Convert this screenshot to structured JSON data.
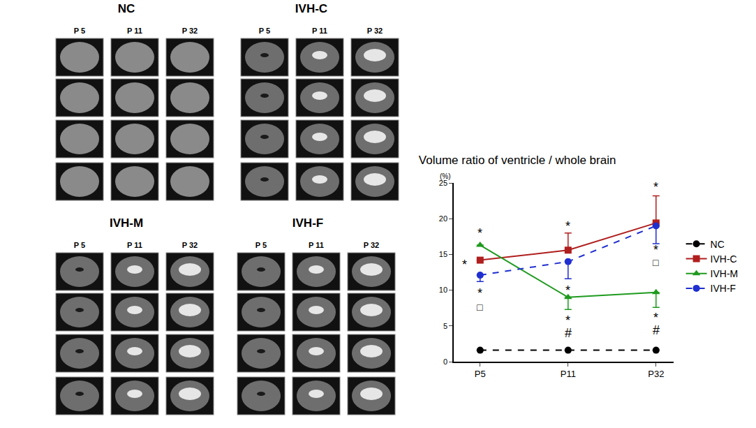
{
  "chart_data": {
    "type": "line",
    "title": "Volume ratio of ventricle / whole brain",
    "y_label": "(%)",
    "categories": [
      "P5",
      "P11",
      "P32"
    ],
    "ylim": [
      0,
      25
    ],
    "yticks": [
      0,
      5,
      10,
      15,
      20,
      25
    ],
    "grid": false,
    "legend": "right",
    "series": [
      {
        "name": "NC",
        "color": "#000000",
        "marker": "circle",
        "line_style": "dash",
        "values": [
          1.6,
          1.6,
          1.6
        ],
        "error_plus": [
          0,
          0,
          0
        ],
        "error_minus": [
          0,
          0,
          0
        ]
      },
      {
        "name": "IVH-C",
        "color": "#b01e1e",
        "marker": "square",
        "line_style": "solid",
        "values": [
          14.2,
          15.6,
          19.4
        ],
        "error_plus": [
          0,
          2.4,
          3.8
        ],
        "error_minus": [
          0,
          0,
          0
        ]
      },
      {
        "name": "IVH-M",
        "color": "#1e9a1e",
        "marker": "triangle-up",
        "line_style": "solid",
        "values": [
          16.3,
          9.0,
          9.7
        ],
        "error_plus": [
          0,
          0,
          0
        ],
        "error_minus": [
          0,
          1.7,
          2.1
        ]
      },
      {
        "name": "IVH-F",
        "color": "#1f2fd0",
        "marker": "circle",
        "line_style": "dash",
        "values": [
          12.1,
          14.0,
          19.0
        ],
        "error_plus": [
          0,
          0,
          0
        ],
        "error_minus": [
          0.9,
          2.4,
          2.5
        ]
      }
    ],
    "annotations": [
      {
        "x": "P5",
        "y": 18.0,
        "text": "*"
      },
      {
        "x": "P5",
        "y": 13.6,
        "text": "*",
        "side": "left"
      },
      {
        "x": "P5",
        "y": 9.6,
        "text": "*"
      },
      {
        "x": "P5",
        "y": 7.6,
        "text": "□"
      },
      {
        "x": "P11",
        "y": 18.9,
        "text": "*"
      },
      {
        "x": "P11",
        "y": 10.0,
        "text": "*"
      },
      {
        "x": "P11",
        "y": 5.8,
        "text": "*"
      },
      {
        "x": "P11",
        "y": 4.0,
        "text": "#"
      },
      {
        "x": "P32",
        "y": 24.4,
        "text": "*"
      },
      {
        "x": "P32",
        "y": 15.6,
        "text": "*"
      },
      {
        "x": "P32",
        "y": 13.9,
        "text": "□"
      },
      {
        "x": "P32",
        "y": 6.2,
        "text": "*"
      },
      {
        "x": "P32",
        "y": 4.4,
        "text": "#"
      }
    ]
  },
  "image_panels": [
    {
      "title": "NC",
      "columns": [
        "P 5",
        "P 11",
        "P 32"
      ]
    },
    {
      "title": "IVH-C",
      "columns": [
        "P 5",
        "P 11",
        "P 32"
      ]
    },
    {
      "title": "IVH-M",
      "columns": [
        "P 5",
        "P 11",
        "P 32"
      ]
    },
    {
      "title": "IVH-F",
      "columns": [
        "P 5",
        "P 11",
        "P 32"
      ]
    }
  ]
}
